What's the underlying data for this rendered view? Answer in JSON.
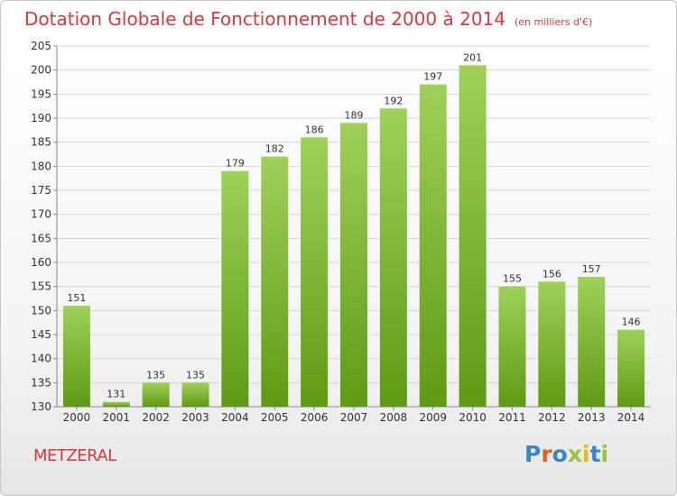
{
  "header": {
    "title": "Dotation Globale de Fonctionnement de 2000 à 2014",
    "unit": "(en milliers d'€)"
  },
  "footer": {
    "commune": "METZERAL",
    "logo": "Proxiti"
  },
  "colors": {
    "title": "#d8393f",
    "bar_top": "#9fd15a",
    "bar_bottom": "#5f9a14",
    "logo_letters": [
      "#3d86c6",
      "#e0601f",
      "#3d86c6",
      "#9bc43a",
      "#e7b81a",
      "#3d86c6",
      "#9bc43a"
    ]
  },
  "chart_data": {
    "type": "bar",
    "title": "Dotation Globale de Fonctionnement de 2000 à 2014",
    "subtitle": "(en milliers d'€)",
    "categories": [
      "2000",
      "2001",
      "2002",
      "2003",
      "2004",
      "2005",
      "2006",
      "2007",
      "2008",
      "2009",
      "2010",
      "2011",
      "2012",
      "2013",
      "2014"
    ],
    "values": [
      151,
      131,
      135,
      135,
      179,
      182,
      186,
      189,
      192,
      197,
      201,
      155,
      156,
      157,
      146
    ],
    "ylim": [
      130,
      205
    ],
    "yticks": [
      130,
      135,
      140,
      145,
      150,
      155,
      160,
      165,
      170,
      175,
      180,
      185,
      190,
      195,
      200,
      205
    ],
    "grid": true,
    "legend": "none"
  }
}
